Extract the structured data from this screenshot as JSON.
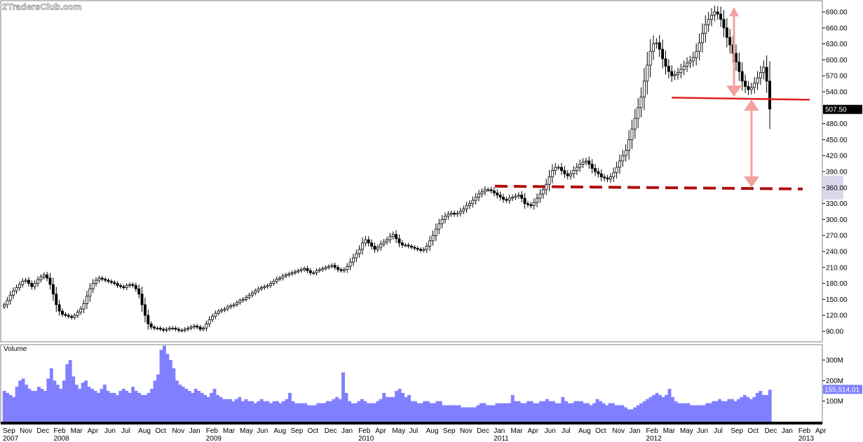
{
  "watermark": "2TradersClub.com",
  "chart_data": {
    "type": "candlestick",
    "price_panel": {
      "y_ticks": [
        "90.00",
        "120.00",
        "150.00",
        "180.00",
        "210.00",
        "240.00",
        "270.00",
        "300.00",
        "330.00",
        "360.00",
        "390.00",
        "420.00",
        "450.00",
        "480.00",
        "540.00",
        "570.00",
        "600.00",
        "630.00",
        "660.00",
        "690.00"
      ],
      "ylim": [
        65,
        700
      ],
      "last_price_label": "507.50",
      "last_price": 507.5,
      "highlighted_level": 360,
      "candles_weekly_close": [
        140,
        148,
        158,
        166,
        172,
        178,
        184,
        186,
        180,
        174,
        180,
        187,
        192,
        196,
        190,
        178,
        160,
        140,
        128,
        122,
        120,
        118,
        116,
        120,
        126,
        132,
        142,
        156,
        170,
        180,
        186,
        190,
        188,
        186,
        184,
        182,
        180,
        176,
        174,
        172,
        176,
        178,
        176,
        170,
        160,
        140,
        120,
        104,
        98,
        96,
        96,
        94,
        92,
        94,
        96,
        96,
        94,
        92,
        92,
        94,
        96,
        98,
        100,
        98,
        94,
        96,
        104,
        112,
        118,
        124,
        128,
        130,
        132,
        136,
        138,
        140,
        144,
        148,
        150,
        154,
        158,
        162,
        166,
        170,
        172,
        174,
        176,
        180,
        184,
        188,
        190,
        194,
        196,
        198,
        200,
        202,
        204,
        206,
        208,
        204,
        200,
        200,
        204,
        206,
        208,
        210,
        212,
        214,
        210,
        206,
        204,
        206,
        212,
        220,
        228,
        236,
        244,
        256,
        262,
        256,
        250,
        244,
        248,
        254,
        258,
        262,
        268,
        272,
        264,
        256,
        252,
        252,
        250,
        248,
        246,
        244,
        242,
        244,
        250,
        260,
        270,
        282,
        292,
        300,
        306,
        310,
        312,
        310,
        312,
        316,
        320,
        326,
        330,
        336,
        342,
        348,
        352,
        356,
        356,
        354,
        350,
        346,
        342,
        338,
        336,
        340,
        342,
        344,
        346,
        340,
        330,
        328,
        326,
        332,
        340,
        348,
        356,
        366,
        380,
        392,
        398,
        398,
        392,
        386,
        382,
        386,
        392,
        398,
        404,
        408,
        410,
        404,
        396,
        390,
        386,
        380,
        378,
        376,
        380,
        388,
        398,
        410,
        420,
        430,
        450,
        470,
        490,
        510,
        530,
        560,
        590,
        616,
        630,
        632,
        620,
        602,
        588,
        578,
        570,
        572,
        576,
        582,
        588,
        594,
        598,
        604,
        616,
        632,
        650,
        666,
        676,
        684,
        690,
        686,
        676,
        660,
        642,
        628,
        612,
        596,
        578,
        560,
        550,
        544,
        548,
        556,
        566,
        576,
        586,
        560,
        507.5
      ]
    },
    "volume_panel": {
      "label": "Volume",
      "y_ticks": [
        "100M",
        "200M",
        "300M"
      ],
      "ylim": [
        0,
        380
      ],
      "last_volume_label": "155,514,01",
      "last_volume_millions": 155.5,
      "values_millions": [
        150,
        140,
        130,
        120,
        170,
        200,
        210,
        180,
        160,
        150,
        150,
        170,
        160,
        150,
        210,
        260,
        200,
        180,
        160,
        200,
        280,
        300,
        220,
        180,
        160,
        190,
        200,
        170,
        160,
        150,
        140,
        160,
        180,
        150,
        140,
        140,
        130,
        150,
        160,
        150,
        140,
        170,
        150,
        140,
        130,
        130,
        140,
        160,
        200,
        230,
        350,
        370,
        330,
        300,
        260,
        200,
        180,
        170,
        160,
        150,
        140,
        160,
        150,
        140,
        130,
        120,
        140,
        160,
        130,
        120,
        110,
        110,
        110,
        100,
        110,
        120,
        100,
        110,
        100,
        100,
        90,
        100,
        110,
        100,
        100,
        90,
        100,
        100,
        90,
        100,
        110,
        140,
        100,
        90,
        90,
        90,
        90,
        80,
        80,
        80,
        90,
        90,
        90,
        100,
        100,
        110,
        120,
        110,
        240,
        140,
        100,
        90,
        90,
        100,
        110,
        100,
        90,
        90,
        90,
        100,
        110,
        140,
        120,
        120,
        120,
        150,
        160,
        140,
        120,
        130,
        100,
        100,
        90,
        90,
        100,
        100,
        90,
        90,
        100,
        100,
        80,
        80,
        80,
        80,
        80,
        80,
        70,
        70,
        70,
        70,
        70,
        80,
        90,
        90,
        80,
        80,
        80,
        90,
        90,
        90,
        90,
        90,
        130,
        100,
        100,
        90,
        90,
        100,
        100,
        90,
        90,
        100,
        100,
        110,
        100,
        100,
        90,
        90,
        120,
        100,
        90,
        90,
        100,
        100,
        100,
        90,
        90,
        80,
        90,
        110,
        100,
        90,
        80,
        90,
        90,
        80,
        80,
        80,
        70,
        60,
        60,
        70,
        80,
        90,
        100,
        110,
        120,
        130,
        140,
        130,
        120,
        130,
        160,
        120,
        100,
        90,
        90,
        90,
        90,
        80,
        80,
        80,
        80,
        80,
        90,
        90,
        100,
        100,
        110,
        100,
        100,
        110,
        110,
        100,
        110,
        120,
        130,
        120,
        110,
        120,
        140,
        150,
        130,
        130,
        155.5
      ]
    },
    "x_labels": [
      {
        "text": "Sep",
        "year": "2007"
      },
      {
        "text": "Nov",
        "year": ""
      },
      {
        "text": "Dec",
        "year": ""
      },
      {
        "text": "Feb",
        "year": "2008"
      },
      {
        "text": "Mar",
        "year": ""
      },
      {
        "text": "Apr",
        "year": ""
      },
      {
        "text": "Jun",
        "year": ""
      },
      {
        "text": "Jul",
        "year": ""
      },
      {
        "text": "Aug",
        "year": ""
      },
      {
        "text": "Oct",
        "year": ""
      },
      {
        "text": "Nov",
        "year": ""
      },
      {
        "text": "Jan",
        "year": ""
      },
      {
        "text": "Feb",
        "year": "2009"
      },
      {
        "text": "Mar",
        "year": ""
      },
      {
        "text": "May",
        "year": ""
      },
      {
        "text": "Jun",
        "year": ""
      },
      {
        "text": "Aug",
        "year": ""
      },
      {
        "text": "Sep",
        "year": ""
      },
      {
        "text": "Oct",
        "year": ""
      },
      {
        "text": "Dec",
        "year": ""
      },
      {
        "text": "Jan",
        "year": ""
      },
      {
        "text": "Feb",
        "year": "2010"
      },
      {
        "text": "Apr",
        "year": ""
      },
      {
        "text": "May",
        "year": ""
      },
      {
        "text": "Jul",
        "year": ""
      },
      {
        "text": "Aug",
        "year": ""
      },
      {
        "text": "Sep",
        "year": ""
      },
      {
        "text": "Nov",
        "year": ""
      },
      {
        "text": "Dec",
        "year": ""
      },
      {
        "text": "Jan",
        "year": "2011"
      },
      {
        "text": "Mar",
        "year": ""
      },
      {
        "text": "Apr",
        "year": ""
      },
      {
        "text": "Jun",
        "year": ""
      },
      {
        "text": "Jul",
        "year": ""
      },
      {
        "text": "Aug",
        "year": ""
      },
      {
        "text": "Oct",
        "year": ""
      },
      {
        "text": "Nov",
        "year": ""
      },
      {
        "text": "Jan",
        "year": ""
      },
      {
        "text": "Feb",
        "year": "2012"
      },
      {
        "text": "Mar",
        "year": ""
      },
      {
        "text": "May",
        "year": ""
      },
      {
        "text": "Jun",
        "year": ""
      },
      {
        "text": "Jul",
        "year": ""
      },
      {
        "text": "Sep",
        "year": ""
      },
      {
        "text": "Oct",
        "year": ""
      },
      {
        "text": "Dec",
        "year": ""
      },
      {
        "text": "Jan",
        "year": ""
      },
      {
        "text": "Feb",
        "year": "2013"
      },
      {
        "text": "Apr",
        "year": ""
      }
    ],
    "annotations": {
      "neckline_level": 528,
      "support_level": 360,
      "pattern_top": 695,
      "colors": {
        "neckline": "#e02020",
        "support": "#b01010",
        "arrows": "#f4a0a0",
        "volume_bars": "#8080ff",
        "highlight_band": "#dcd8ec"
      }
    },
    "grid": false
  }
}
